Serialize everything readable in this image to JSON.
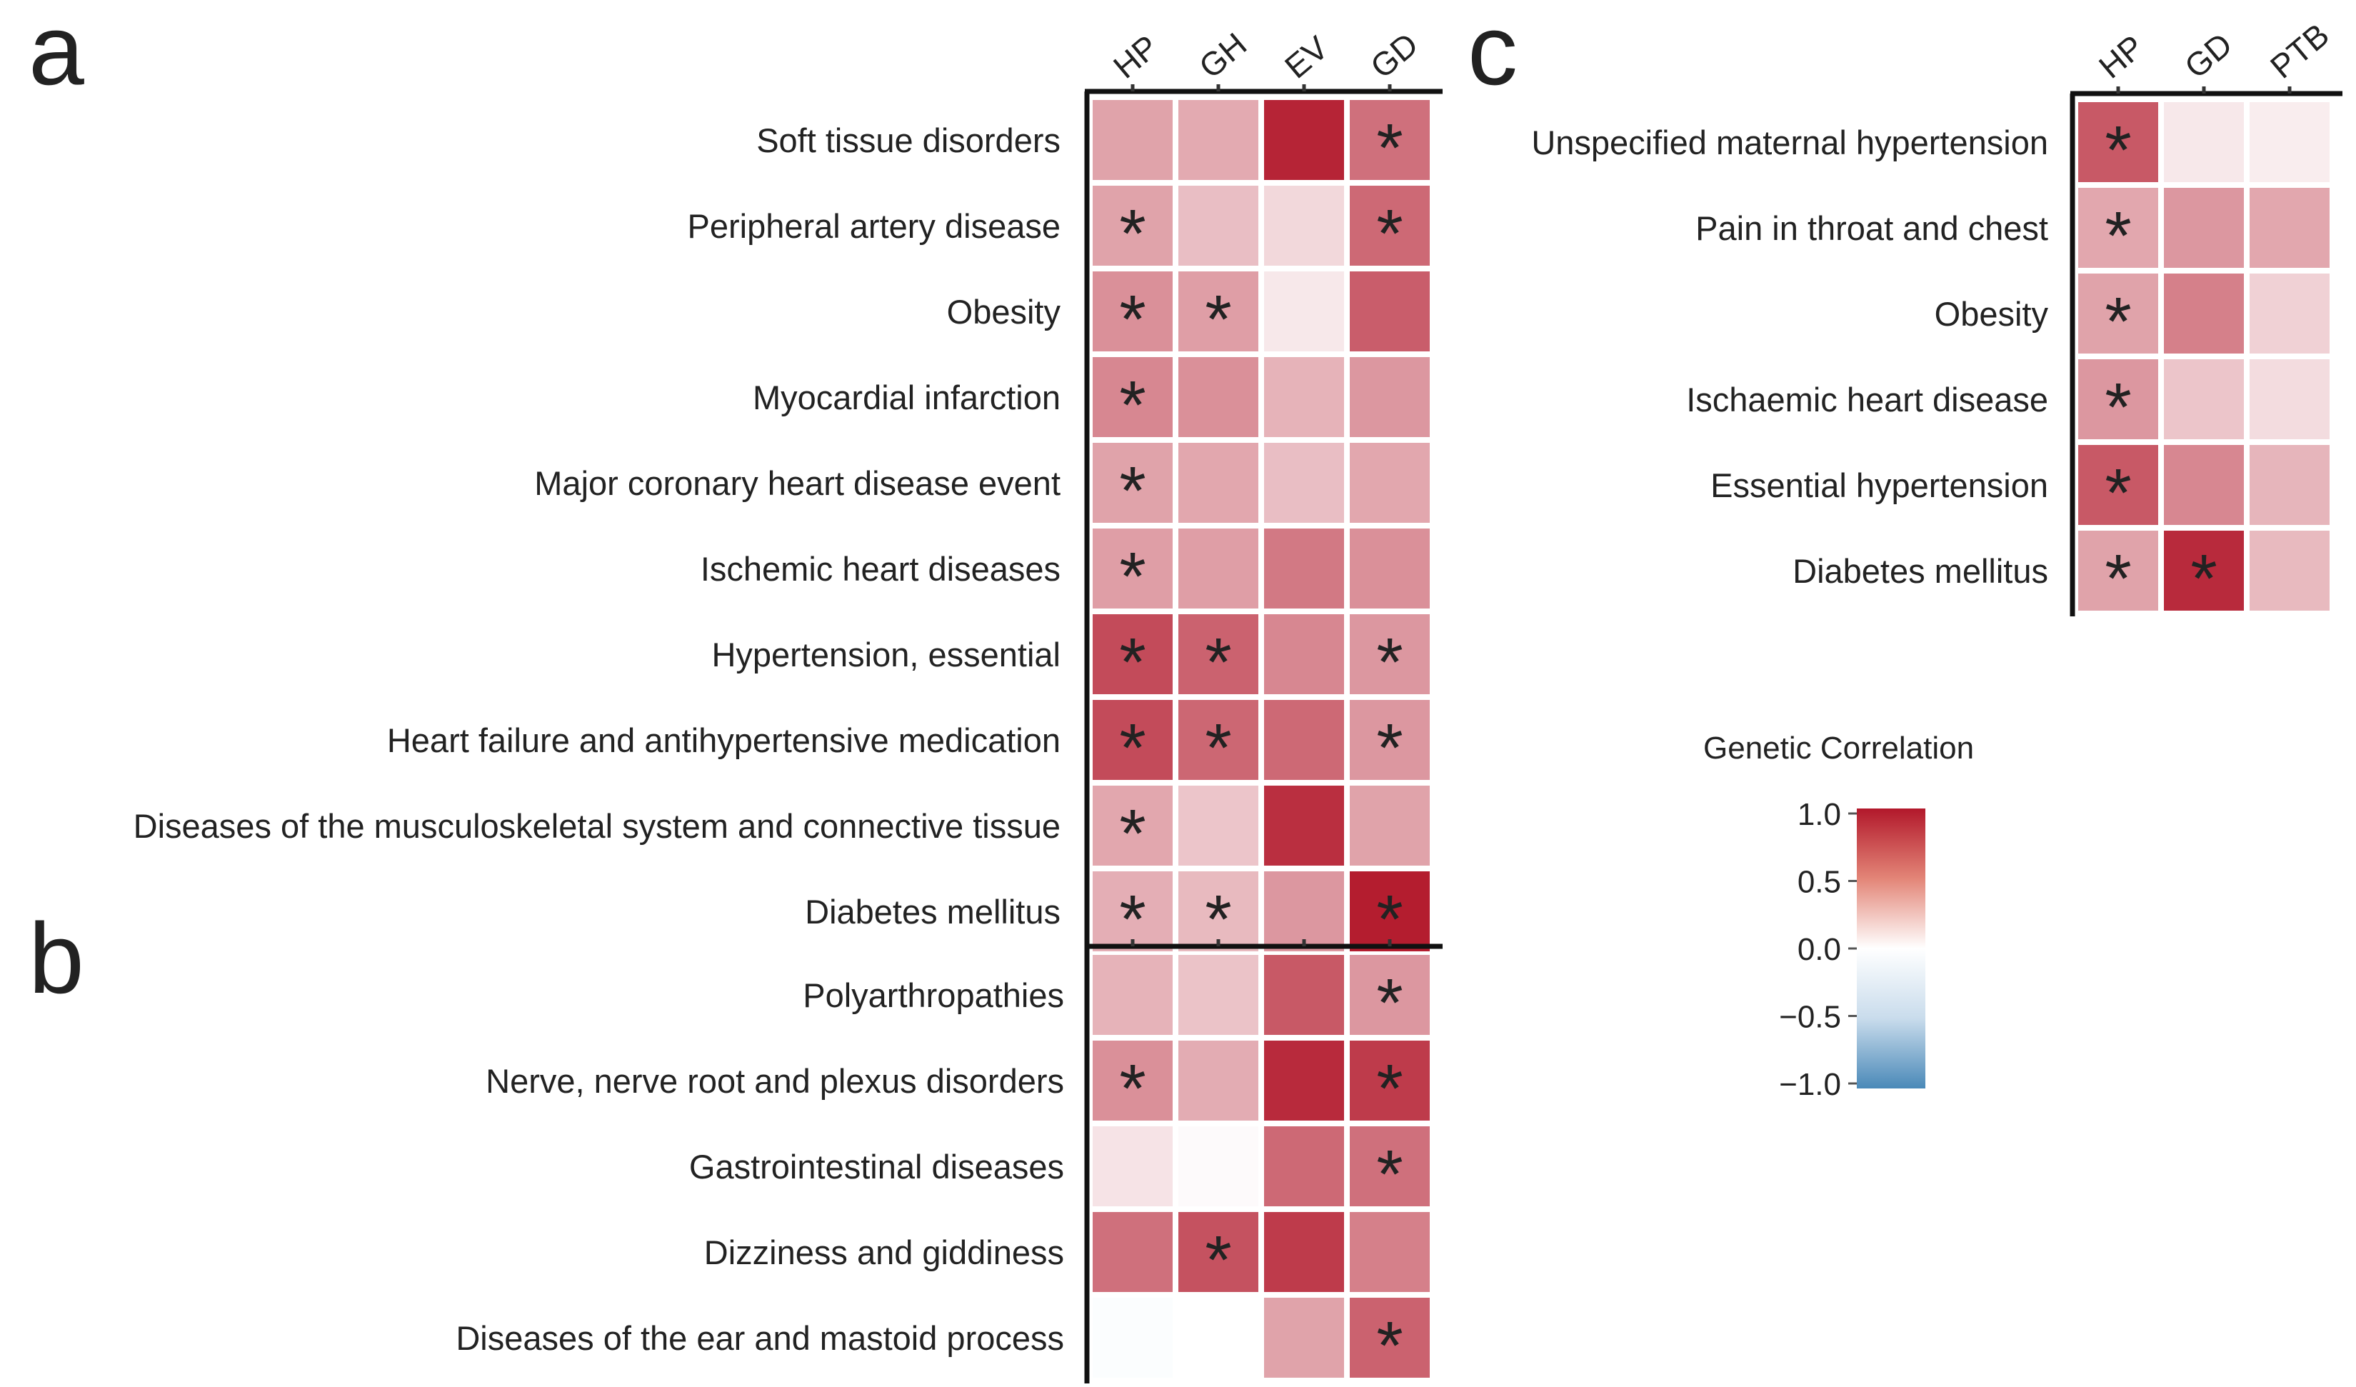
{
  "figure": {
    "panels": {
      "a": {
        "label": "a"
      },
      "b": {
        "label": "b"
      },
      "c": {
        "label": "c"
      }
    },
    "legend": {
      "title": "Genetic Correlation",
      "ticks": [
        "1.0",
        "0.5",
        "0.0",
        "−0.5",
        "−1.0"
      ],
      "colors": {
        "high": "#b2182b",
        "mid": "#ffffff",
        "low": "#4a89b8"
      }
    }
  },
  "chart_data": [
    {
      "panel": "a",
      "type": "heatmap",
      "columns": [
        "HP",
        "GH",
        "EV",
        "GD"
      ],
      "rows": [
        "Soft tissue disorders",
        "Peripheral artery disease",
        "Obesity",
        "Myocardial infarction",
        "Major coronary heart disease event",
        "Ischemic heart diseases",
        "Hypertension, essential",
        "Heart failure and antihypertensive medication",
        "Diseases of the musculoskeletal system and connective tissue",
        "Diabetes mellitus"
      ],
      "values": [
        [
          0.4,
          0.37,
          0.95,
          0.62
        ],
        [
          0.4,
          0.28,
          0.17,
          0.65
        ],
        [
          0.48,
          0.42,
          0.1,
          0.7
        ],
        [
          0.52,
          0.48,
          0.33,
          0.45
        ],
        [
          0.4,
          0.38,
          0.28,
          0.38
        ],
        [
          0.42,
          0.42,
          0.58,
          0.48
        ],
        [
          0.78,
          0.68,
          0.52,
          0.45
        ],
        [
          0.78,
          0.66,
          0.65,
          0.45
        ],
        [
          0.38,
          0.25,
          0.9,
          0.4
        ],
        [
          0.35,
          0.3,
          0.45,
          0.98
        ]
      ],
      "significant": [
        [
          false,
          false,
          false,
          true
        ],
        [
          true,
          false,
          false,
          true
        ],
        [
          true,
          true,
          false,
          false
        ],
        [
          true,
          false,
          false,
          false
        ],
        [
          true,
          false,
          false,
          false
        ],
        [
          true,
          false,
          false,
          false
        ],
        [
          true,
          true,
          false,
          true
        ],
        [
          true,
          true,
          false,
          true
        ],
        [
          true,
          false,
          false,
          false
        ],
        [
          true,
          true,
          false,
          true
        ]
      ],
      "zlim": [
        -1,
        1
      ]
    },
    {
      "panel": "b",
      "type": "heatmap",
      "columns": [
        "HP",
        "GH",
        "EV",
        "GD"
      ],
      "rows": [
        "Polyarthropathies",
        "Nerve, nerve root and plexus disorders",
        "Gastrointestinal diseases",
        "Dizziness and giddiness",
        "Diseases of the ear and mastoid process"
      ],
      "values": [
        [
          0.33,
          0.26,
          0.72,
          0.45
        ],
        [
          0.48,
          0.36,
          0.92,
          0.85
        ],
        [
          0.12,
          0.02,
          0.65,
          0.62
        ],
        [
          0.62,
          0.75,
          0.85,
          0.55
        ],
        [
          -0.02,
          0.0,
          0.4,
          0.68
        ]
      ],
      "significant": [
        [
          false,
          false,
          false,
          true
        ],
        [
          true,
          false,
          false,
          true
        ],
        [
          false,
          false,
          false,
          true
        ],
        [
          false,
          true,
          false,
          false
        ],
        [
          false,
          false,
          false,
          true
        ]
      ],
      "zlim": [
        -1,
        1
      ]
    },
    {
      "panel": "c",
      "type": "heatmap",
      "columns": [
        "HP",
        "GD",
        "PTB"
      ],
      "rows": [
        "Unspecified maternal hypertension",
        "Pain in throat and chest",
        "Obesity",
        "Ischaemic heart disease",
        "Essential hypertension",
        "Diabetes mellitus"
      ],
      "values": [
        [
          0.72,
          0.1,
          0.08
        ],
        [
          0.38,
          0.45,
          0.38
        ],
        [
          0.4,
          0.55,
          0.2
        ],
        [
          0.45,
          0.25,
          0.15
        ],
        [
          0.72,
          0.52,
          0.32
        ],
        [
          0.4,
          0.92,
          0.3
        ]
      ],
      "significant": [
        [
          true,
          false,
          false
        ],
        [
          true,
          false,
          false
        ],
        [
          true,
          false,
          false
        ],
        [
          true,
          false,
          false
        ],
        [
          true,
          false,
          false
        ],
        [
          true,
          true,
          false
        ]
      ],
      "zlim": [
        -1,
        1
      ]
    }
  ]
}
